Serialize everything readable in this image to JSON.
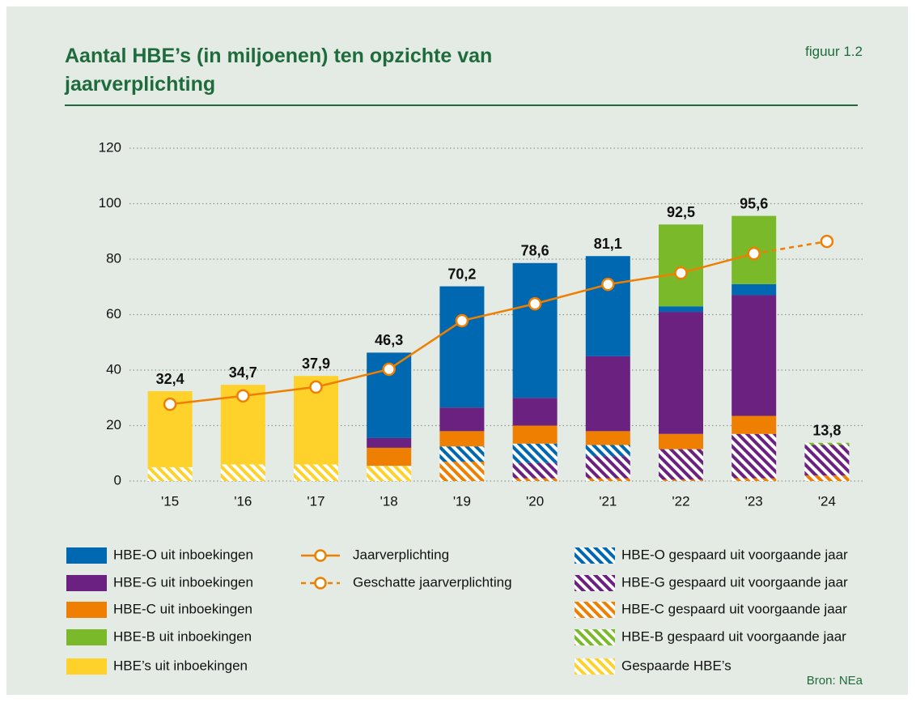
{
  "chart_data": {
    "type": "bar",
    "title": "Aantal HBE’s (in miljoenen) ten opzichte van jaarverplichting",
    "figure_label": "figuur 1.2",
    "source": "Bron: NEa",
    "categories": [
      "'15",
      "'16",
      "'17",
      "'18",
      "'19",
      "'20",
      "'21",
      "'22",
      "'23",
      "'24"
    ],
    "ylim": [
      0,
      120
    ],
    "yticks": [
      0,
      20,
      40,
      60,
      80,
      100,
      120
    ],
    "grid": true,
    "stacked": true,
    "series": [
      {
        "name": "Gespaarde HBE’s",
        "color": "#ffd12b",
        "hatch": true,
        "values": [
          5,
          6,
          6,
          5.5,
          0,
          0,
          0,
          0,
          0,
          0
        ]
      },
      {
        "name": "HBE-C gespaard uit voorgaande jaar",
        "color": "#ee7f00",
        "hatch": true,
        "values": [
          0,
          0,
          0,
          0,
          7,
          1,
          1,
          0.5,
          1,
          2
        ]
      },
      {
        "name": "HBE-G gespaard uit voorgaande jaar",
        "color": "#6a217f",
        "hatch": true,
        "values": [
          0,
          0,
          0,
          0,
          0,
          5.5,
          8,
          11,
          16,
          11
        ]
      },
      {
        "name": "HBE-B gespaard uit voorgaande jaar",
        "color": "#7ab929",
        "hatch": true,
        "values": [
          0,
          0,
          0,
          0,
          0,
          0,
          0,
          0,
          0,
          0.8
        ]
      },
      {
        "name": "HBE-O gespaard uit voorgaande jaar",
        "color": "#0067b1",
        "hatch": true,
        "values": [
          0,
          0,
          0,
          0,
          5.5,
          7,
          4,
          0,
          0,
          0
        ]
      },
      {
        "name": "HBE-C uit inboekingen",
        "color": "#ee7f00",
        "hatch": false,
        "values": [
          0,
          0,
          0,
          6.5,
          5.5,
          6.5,
          5,
          5.5,
          6.5,
          0
        ]
      },
      {
        "name": "HBE-G uit inboekingen",
        "color": "#6a217f",
        "hatch": false,
        "values": [
          0,
          0,
          0,
          3.5,
          8.5,
          10,
          27,
          44,
          43.5,
          0
        ]
      },
      {
        "name": "HBE-O uit inboekingen",
        "color": "#0067b1",
        "hatch": false,
        "values": [
          0,
          0,
          0,
          30.8,
          43.7,
          48.6,
          36.1,
          2,
          4,
          0
        ]
      },
      {
        "name": "HBE-B uit inboekingen",
        "color": "#7ab929",
        "hatch": false,
        "values": [
          0,
          0,
          0,
          0,
          0,
          0,
          0,
          29.5,
          24.6,
          0
        ]
      },
      {
        "name": "HBE’s uit inboekingen",
        "color": "#ffd12b",
        "hatch": false,
        "values": [
          27.4,
          28.7,
          31.9,
          0,
          0,
          0,
          0,
          0,
          0,
          0
        ]
      }
    ],
    "totals": {
      "values": [
        32.4,
        34.7,
        37.9,
        46.3,
        70.2,
        78.6,
        81.1,
        92.5,
        95.6,
        13.8
      ],
      "value_labels": [
        "32,4",
        "34,7",
        "37,9",
        "46,3",
        "70,2",
        "78,6",
        "81,1",
        "92,5",
        "95,6",
        "13,8"
      ]
    },
    "lines": [
      {
        "name": "Jaarverplichting",
        "color": "#ee7f00",
        "dashed": false,
        "values": [
          27.7,
          30.7,
          33.9,
          40.3,
          57.8,
          63.9,
          70.9,
          75,
          82,
          null
        ]
      },
      {
        "name": "Geschatte jaarverplichting",
        "color": "#ee7f00",
        "dashed": true,
        "values": [
          null,
          null,
          null,
          null,
          null,
          null,
          null,
          null,
          82,
          86.4
        ]
      }
    ]
  }
}
